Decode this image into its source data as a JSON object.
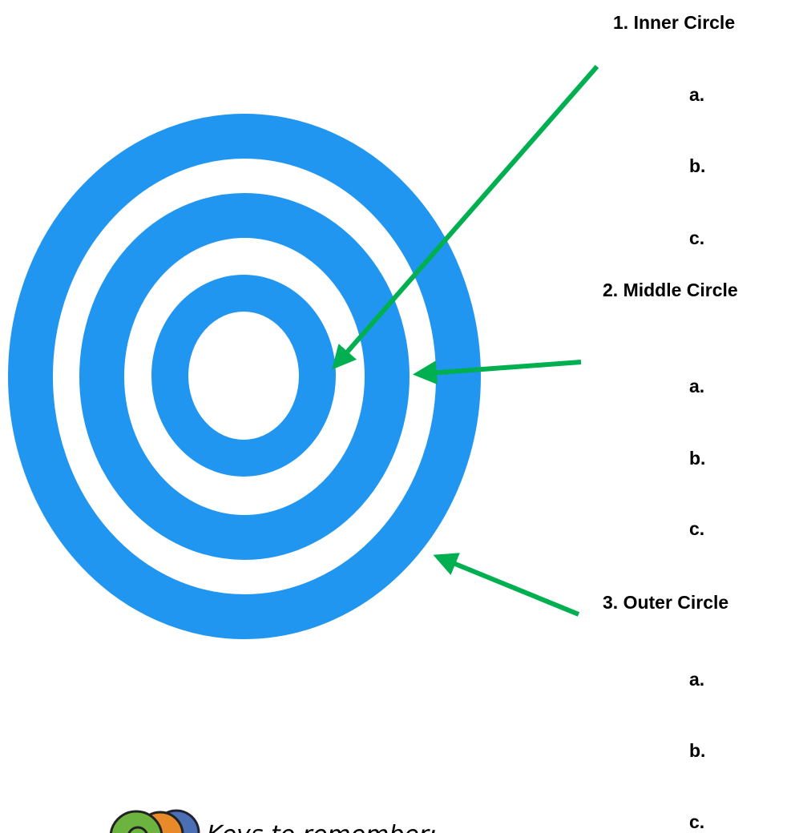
{
  "sections": [
    {
      "label": "1. Inner Circle",
      "items": [
        "a.",
        "b.",
        "c."
      ]
    },
    {
      "label": "2. Middle Circle",
      "items": [
        "a.",
        "b.",
        "c."
      ]
    },
    {
      "label": "3. Outer Circle",
      "items": [
        "a.",
        "b.",
        "c."
      ]
    }
  ],
  "footer": {
    "text": "Keys to remember:"
  }
}
